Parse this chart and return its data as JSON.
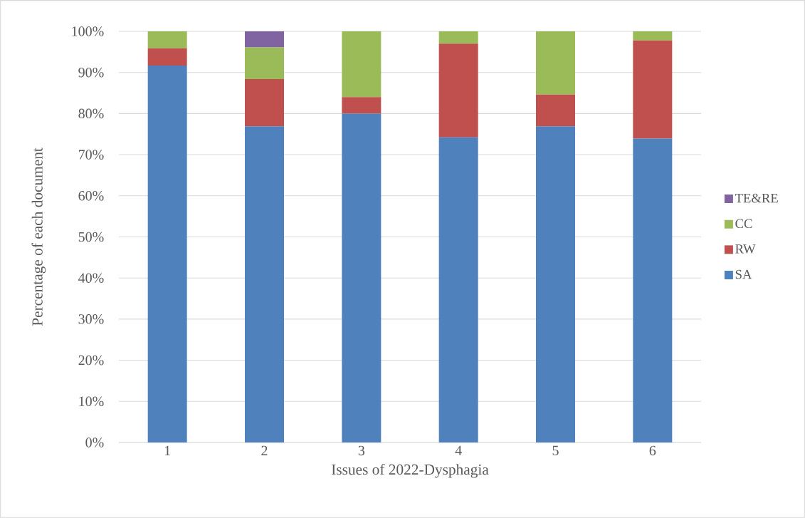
{
  "chart_data": {
    "type": "bar",
    "stacked": true,
    "xlabel": "Issues of 2022-Dysphagia",
    "ylabel": "Percentage of each document",
    "categories": [
      "1",
      "2",
      "3",
      "4",
      "5",
      "6"
    ],
    "series": [
      {
        "name": "SA",
        "color": "#4f81bd",
        "values": [
          91.7,
          76.9,
          80,
          74.2,
          76.9,
          73.9
        ]
      },
      {
        "name": "RW",
        "color": "#c0504d",
        "values": [
          4.2,
          11.5,
          4,
          22.8,
          7.7,
          23.9
        ]
      },
      {
        "name": "CC",
        "color": "#9bbb59",
        "values": [
          4.1,
          7.7,
          16,
          3,
          15.4,
          2.2
        ]
      },
      {
        "name": "TE&RE",
        "color": "#8064a2",
        "values": [
          0,
          3.9,
          0,
          0,
          0,
          0
        ]
      }
    ],
    "ylim": [
      0,
      100
    ],
    "yticks": [
      {
        "value": 0,
        "label": "0%"
      },
      {
        "value": 10,
        "label": "10%"
      },
      {
        "value": 20,
        "label": "20%"
      },
      {
        "value": 30,
        "label": "30%"
      },
      {
        "value": 40,
        "label": "40%"
      },
      {
        "value": 50,
        "label": "50%"
      },
      {
        "value": 60,
        "label": "60%"
      },
      {
        "value": 70,
        "label": "70%"
      },
      {
        "value": 80,
        "label": "80%"
      },
      {
        "value": 90,
        "label": "90%"
      },
      {
        "value": 100,
        "label": "100%"
      }
    ],
    "grid": "y",
    "legend": "right"
  }
}
